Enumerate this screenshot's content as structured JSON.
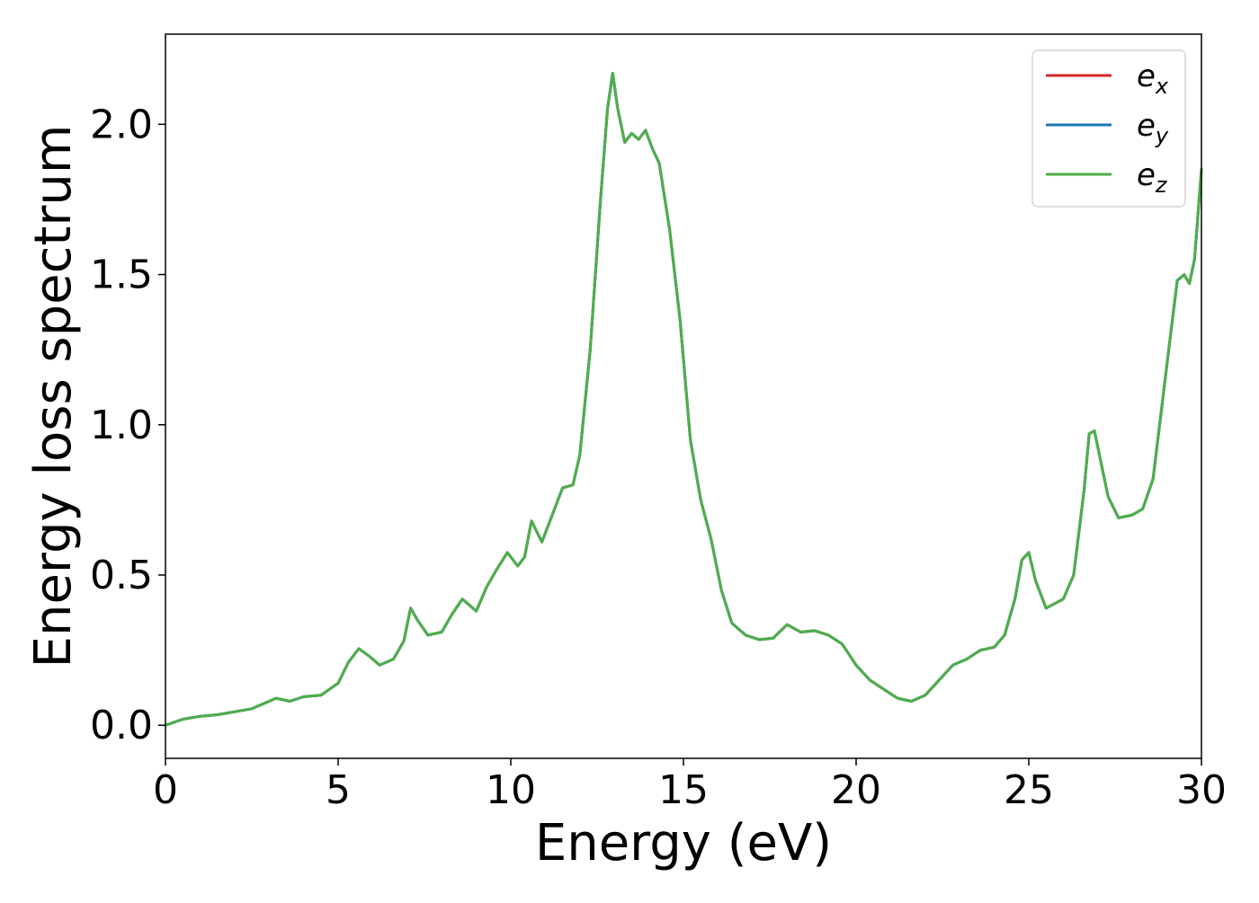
{
  "chart_data": {
    "type": "line",
    "title": "",
    "xlabel": "Energy (eV)",
    "ylabel": "Energy loss spectrum",
    "xlim": [
      0,
      30
    ],
    "ylim": [
      -0.11,
      2.3
    ],
    "xticks": [
      0,
      5,
      10,
      15,
      20,
      25,
      30
    ],
    "xtick_labels": [
      "0",
      "5",
      "10",
      "15",
      "20",
      "25",
      "30"
    ],
    "yticks": [
      0.0,
      0.5,
      1.0,
      1.5,
      2.0
    ],
    "ytick_labels": [
      "0.0",
      "0.5",
      "1.0",
      "1.5",
      "2.0"
    ],
    "grid": false,
    "legend_position": "top-right",
    "legend": [
      {
        "base": "e",
        "sub": "x",
        "color": "#d62728"
      },
      {
        "base": "e",
        "sub": "y",
        "color": "#1f77b4"
      },
      {
        "base": "e",
        "sub": "z",
        "color": "#4daf4a"
      }
    ],
    "x": [
      0.0,
      0.5,
      1.0,
      1.5,
      2.0,
      2.5,
      3.0,
      3.2,
      3.6,
      4.0,
      4.5,
      5.0,
      5.3,
      5.6,
      5.9,
      6.2,
      6.6,
      6.9,
      7.1,
      7.3,
      7.6,
      8.0,
      8.3,
      8.6,
      9.0,
      9.3,
      9.6,
      9.9,
      10.2,
      10.4,
      10.6,
      10.9,
      11.2,
      11.5,
      11.8,
      12.0,
      12.3,
      12.6,
      12.8,
      12.95,
      13.1,
      13.3,
      13.5,
      13.7,
      13.9,
      14.1,
      14.3,
      14.6,
      14.9,
      15.2,
      15.5,
      15.8,
      16.1,
      16.4,
      16.8,
      17.2,
      17.6,
      18.0,
      18.4,
      18.8,
      19.2,
      19.6,
      20.0,
      20.4,
      20.8,
      21.2,
      21.6,
      22.0,
      22.4,
      22.8,
      23.2,
      23.6,
      24.0,
      24.3,
      24.6,
      24.8,
      25.0,
      25.2,
      25.5,
      26.0,
      26.3,
      26.6,
      26.75,
      26.9,
      27.1,
      27.3,
      27.6,
      28.0,
      28.3,
      28.6,
      29.0,
      29.3,
      29.5,
      29.65,
      29.8,
      30.0
    ],
    "series": [
      {
        "name": "e_x",
        "color": "#d62728",
        "values": [
          0.0,
          0.02,
          0.03,
          0.035,
          0.045,
          0.055,
          0.08,
          0.09,
          0.08,
          0.095,
          0.1,
          0.14,
          0.21,
          0.255,
          0.23,
          0.2,
          0.22,
          0.28,
          0.39,
          0.35,
          0.3,
          0.31,
          0.37,
          0.42,
          0.38,
          0.46,
          0.52,
          0.575,
          0.53,
          0.56,
          0.68,
          0.61,
          0.7,
          0.79,
          0.8,
          0.9,
          1.25,
          1.75,
          2.05,
          2.17,
          2.05,
          1.94,
          1.97,
          1.95,
          1.98,
          1.92,
          1.87,
          1.65,
          1.35,
          0.95,
          0.75,
          0.62,
          0.45,
          0.34,
          0.3,
          0.285,
          0.29,
          0.335,
          0.31,
          0.315,
          0.3,
          0.27,
          0.2,
          0.15,
          0.12,
          0.09,
          0.08,
          0.1,
          0.15,
          0.2,
          0.22,
          0.25,
          0.26,
          0.3,
          0.42,
          0.55,
          0.575,
          0.48,
          0.39,
          0.42,
          0.5,
          0.78,
          0.97,
          0.98,
          0.87,
          0.76,
          0.69,
          0.7,
          0.72,
          0.82,
          1.2,
          1.48,
          1.5,
          1.47,
          1.55,
          1.85
        ]
      },
      {
        "name": "e_y",
        "color": "#1f77b4",
        "values": [
          0.0,
          0.02,
          0.03,
          0.035,
          0.045,
          0.055,
          0.08,
          0.09,
          0.08,
          0.095,
          0.1,
          0.14,
          0.21,
          0.255,
          0.23,
          0.2,
          0.22,
          0.28,
          0.39,
          0.35,
          0.3,
          0.31,
          0.37,
          0.42,
          0.38,
          0.46,
          0.52,
          0.575,
          0.53,
          0.56,
          0.68,
          0.61,
          0.7,
          0.79,
          0.8,
          0.9,
          1.25,
          1.75,
          2.05,
          2.17,
          2.05,
          1.94,
          1.97,
          1.95,
          1.98,
          1.92,
          1.87,
          1.65,
          1.35,
          0.95,
          0.75,
          0.62,
          0.45,
          0.34,
          0.3,
          0.285,
          0.29,
          0.335,
          0.31,
          0.315,
          0.3,
          0.27,
          0.2,
          0.15,
          0.12,
          0.09,
          0.08,
          0.1,
          0.15,
          0.2,
          0.22,
          0.25,
          0.26,
          0.3,
          0.42,
          0.55,
          0.575,
          0.48,
          0.39,
          0.42,
          0.5,
          0.78,
          0.97,
          0.98,
          0.87,
          0.76,
          0.69,
          0.7,
          0.72,
          0.82,
          1.2,
          1.48,
          1.5,
          1.47,
          1.55,
          1.85
        ]
      },
      {
        "name": "e_z",
        "color": "#4daf4a",
        "values": [
          0.0,
          0.02,
          0.03,
          0.035,
          0.045,
          0.055,
          0.08,
          0.09,
          0.08,
          0.095,
          0.1,
          0.14,
          0.21,
          0.255,
          0.23,
          0.2,
          0.22,
          0.28,
          0.39,
          0.35,
          0.3,
          0.31,
          0.37,
          0.42,
          0.38,
          0.46,
          0.52,
          0.575,
          0.53,
          0.56,
          0.68,
          0.61,
          0.7,
          0.79,
          0.8,
          0.9,
          1.25,
          1.75,
          2.05,
          2.17,
          2.05,
          1.94,
          1.97,
          1.95,
          1.98,
          1.92,
          1.87,
          1.65,
          1.35,
          0.95,
          0.75,
          0.62,
          0.45,
          0.34,
          0.3,
          0.285,
          0.29,
          0.335,
          0.31,
          0.315,
          0.3,
          0.27,
          0.2,
          0.15,
          0.12,
          0.09,
          0.08,
          0.1,
          0.15,
          0.2,
          0.22,
          0.25,
          0.26,
          0.3,
          0.42,
          0.55,
          0.575,
          0.48,
          0.39,
          0.42,
          0.5,
          0.78,
          0.97,
          0.98,
          0.87,
          0.76,
          0.69,
          0.7,
          0.72,
          0.82,
          1.2,
          1.48,
          1.5,
          1.47,
          1.55,
          1.85
        ]
      }
    ]
  }
}
